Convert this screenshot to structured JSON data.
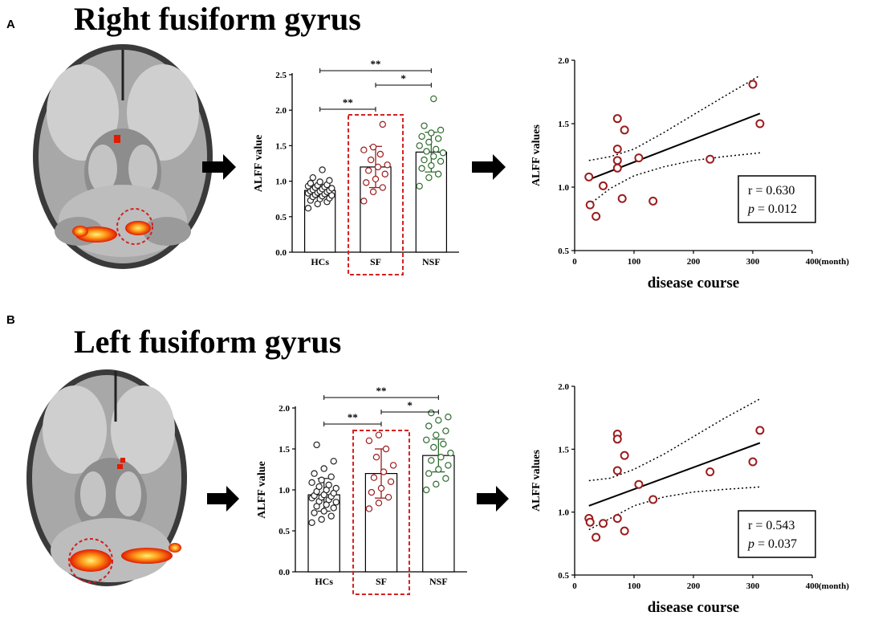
{
  "panels": [
    {
      "letter": "A",
      "title": "Right fusiform gyrus",
      "bar_chart": {
        "type": "bar",
        "ylabel": "ALFF value",
        "ylim": [
          0,
          2.5
        ],
        "yticks": [
          "0.0",
          "0.5",
          "1.0",
          "1.5",
          "2.0",
          "2.5"
        ],
        "categories": [
          "HCs",
          "SF",
          "NSF"
        ],
        "means": [
          0.87,
          1.2,
          1.41
        ],
        "sd": [
          0.08,
          0.29,
          0.28
        ],
        "point_colors": [
          "#222222",
          "#9b1c1c",
          "#2e6b2e"
        ],
        "points": [
          [
            0.62,
            0.68,
            0.71,
            0.73,
            0.75,
            0.76,
            0.78,
            0.79,
            0.8,
            0.81,
            0.82,
            0.83,
            0.84,
            0.85,
            0.86,
            0.86,
            0.87,
            0.88,
            0.89,
            0.9,
            0.91,
            0.92,
            0.93,
            0.94,
            0.95,
            0.97,
            0.99,
            1.01,
            1.05,
            1.16
          ],
          [
            0.72,
            0.85,
            0.91,
            0.98,
            1.03,
            1.1,
            1.15,
            1.2,
            1.23,
            1.3,
            1.38,
            1.44,
            1.48,
            1.8
          ],
          [
            0.93,
            1.05,
            1.1,
            1.18,
            1.22,
            1.28,
            1.3,
            1.35,
            1.4,
            1.42,
            1.45,
            1.5,
            1.55,
            1.6,
            1.63,
            1.68,
            1.72,
            1.78,
            2.16
          ]
        ],
        "comparisons": [
          {
            "from": 0,
            "to": 1,
            "label": "**"
          },
          {
            "from": 1,
            "to": 2,
            "label": "*"
          },
          {
            "from": 0,
            "to": 2,
            "label": "**"
          }
        ],
        "highlight": "SF"
      },
      "scatter": {
        "type": "scatter",
        "ylabel": "ALFF values",
        "xlabel": "disease course",
        "xunit": "(month)",
        "xlim": [
          0,
          400
        ],
        "ylim": [
          0.5,
          2.0
        ],
        "xticks": [
          "0",
          "100",
          "200",
          "300",
          "400"
        ],
        "yticks": [
          "0.5",
          "1.0",
          "1.5",
          "2.0"
        ],
        "x": [
          24,
          26,
          36,
          48,
          72,
          72,
          72,
          72,
          80,
          84,
          108,
          132,
          228,
          300,
          312
        ],
        "y": [
          1.08,
          0.86,
          0.77,
          1.01,
          1.54,
          1.3,
          1.21,
          1.15,
          0.91,
          1.45,
          1.23,
          0.89,
          1.22,
          1.81,
          1.5
        ],
        "fit": {
          "x": [
            24,
            312
          ],
          "y": [
            1.06,
            1.58
          ]
        },
        "ci_upper": {
          "x": [
            24,
            60,
            100,
            150,
            200,
            250,
            312
          ],
          "y": [
            1.21,
            1.24,
            1.3,
            1.43,
            1.57,
            1.71,
            1.88
          ]
        },
        "ci_lower": {
          "x": [
            24,
            60,
            100,
            150,
            200,
            250,
            312
          ],
          "y": [
            0.86,
            0.99,
            1.09,
            1.16,
            1.21,
            1.24,
            1.27
          ]
        },
        "r_text": "r = 0.630",
        "p_label": "p",
        "p_text": " = 0.012"
      }
    },
    {
      "letter": "B",
      "title": "Left fusiform gyrus",
      "bar_chart": {
        "type": "bar",
        "ylabel": "ALFF value",
        "ylim": [
          0,
          2.0
        ],
        "yticks": [
          "0.0",
          "0.5",
          "1.0",
          "1.5",
          "2.0"
        ],
        "categories": [
          "HCs",
          "SF",
          "NSF"
        ],
        "means": [
          0.94,
          1.2,
          1.42
        ],
        "sd": [
          0.2,
          0.3,
          0.2
        ],
        "point_colors": [
          "#222222",
          "#9b1c1c",
          "#2e6b2e"
        ],
        "points": [
          [
            0.6,
            0.64,
            0.68,
            0.72,
            0.74,
            0.78,
            0.8,
            0.82,
            0.85,
            0.86,
            0.88,
            0.9,
            0.91,
            0.92,
            0.93,
            0.94,
            0.96,
            0.98,
            1.0,
            1.02,
            1.04,
            1.06,
            1.09,
            1.12,
            1.16,
            1.2,
            1.26,
            1.35,
            1.55
          ],
          [
            0.77,
            0.84,
            0.91,
            0.97,
            1.02,
            1.1,
            1.15,
            1.22,
            1.3,
            1.4,
            1.5,
            1.6,
            1.67
          ],
          [
            1.0,
            1.07,
            1.14,
            1.2,
            1.25,
            1.3,
            1.36,
            1.4,
            1.45,
            1.52,
            1.56,
            1.61,
            1.67,
            1.72,
            1.78,
            1.85,
            1.89,
            1.94
          ]
        ],
        "comparisons": [
          {
            "from": 0,
            "to": 1,
            "label": "**"
          },
          {
            "from": 1,
            "to": 2,
            "label": "*"
          },
          {
            "from": 0,
            "to": 2,
            "label": "**"
          }
        ],
        "highlight": "SF"
      },
      "scatter": {
        "type": "scatter",
        "ylabel": "ALFF values",
        "xlabel": "disease course",
        "xunit": "(month)",
        "xlim": [
          0,
          400
        ],
        "ylim": [
          0.5,
          2.0
        ],
        "xticks": [
          "0",
          "100",
          "200",
          "300",
          "400"
        ],
        "yticks": [
          "0.5",
          "1.0",
          "1.5",
          "2.0"
        ],
        "x": [
          24,
          26,
          36,
          48,
          72,
          72,
          72,
          72,
          84,
          84,
          108,
          132,
          228,
          300,
          312
        ],
        "y": [
          0.95,
          0.92,
          0.8,
          0.91,
          1.62,
          1.58,
          1.33,
          0.95,
          1.45,
          0.85,
          1.22,
          1.1,
          1.32,
          1.4,
          1.65
        ],
        "fit": {
          "x": [
            24,
            312
          ],
          "y": [
            1.05,
            1.55
          ]
        },
        "ci_upper": {
          "x": [
            24,
            60,
            100,
            150,
            200,
            250,
            312
          ],
          "y": [
            1.25,
            1.27,
            1.34,
            1.46,
            1.6,
            1.74,
            1.9
          ]
        },
        "ci_lower": {
          "x": [
            24,
            60,
            100,
            150,
            200,
            250,
            312
          ],
          "y": [
            0.86,
            0.95,
            1.05,
            1.12,
            1.16,
            1.18,
            1.2
          ]
        },
        "r_text": "r = 0.543",
        "p_label": "p",
        "p_text": " = 0.037"
      }
    }
  ],
  "colors": {
    "accent_red": "#d32020",
    "sf_points": "#9b1c1c",
    "nsf_points": "#2e6b2e"
  }
}
